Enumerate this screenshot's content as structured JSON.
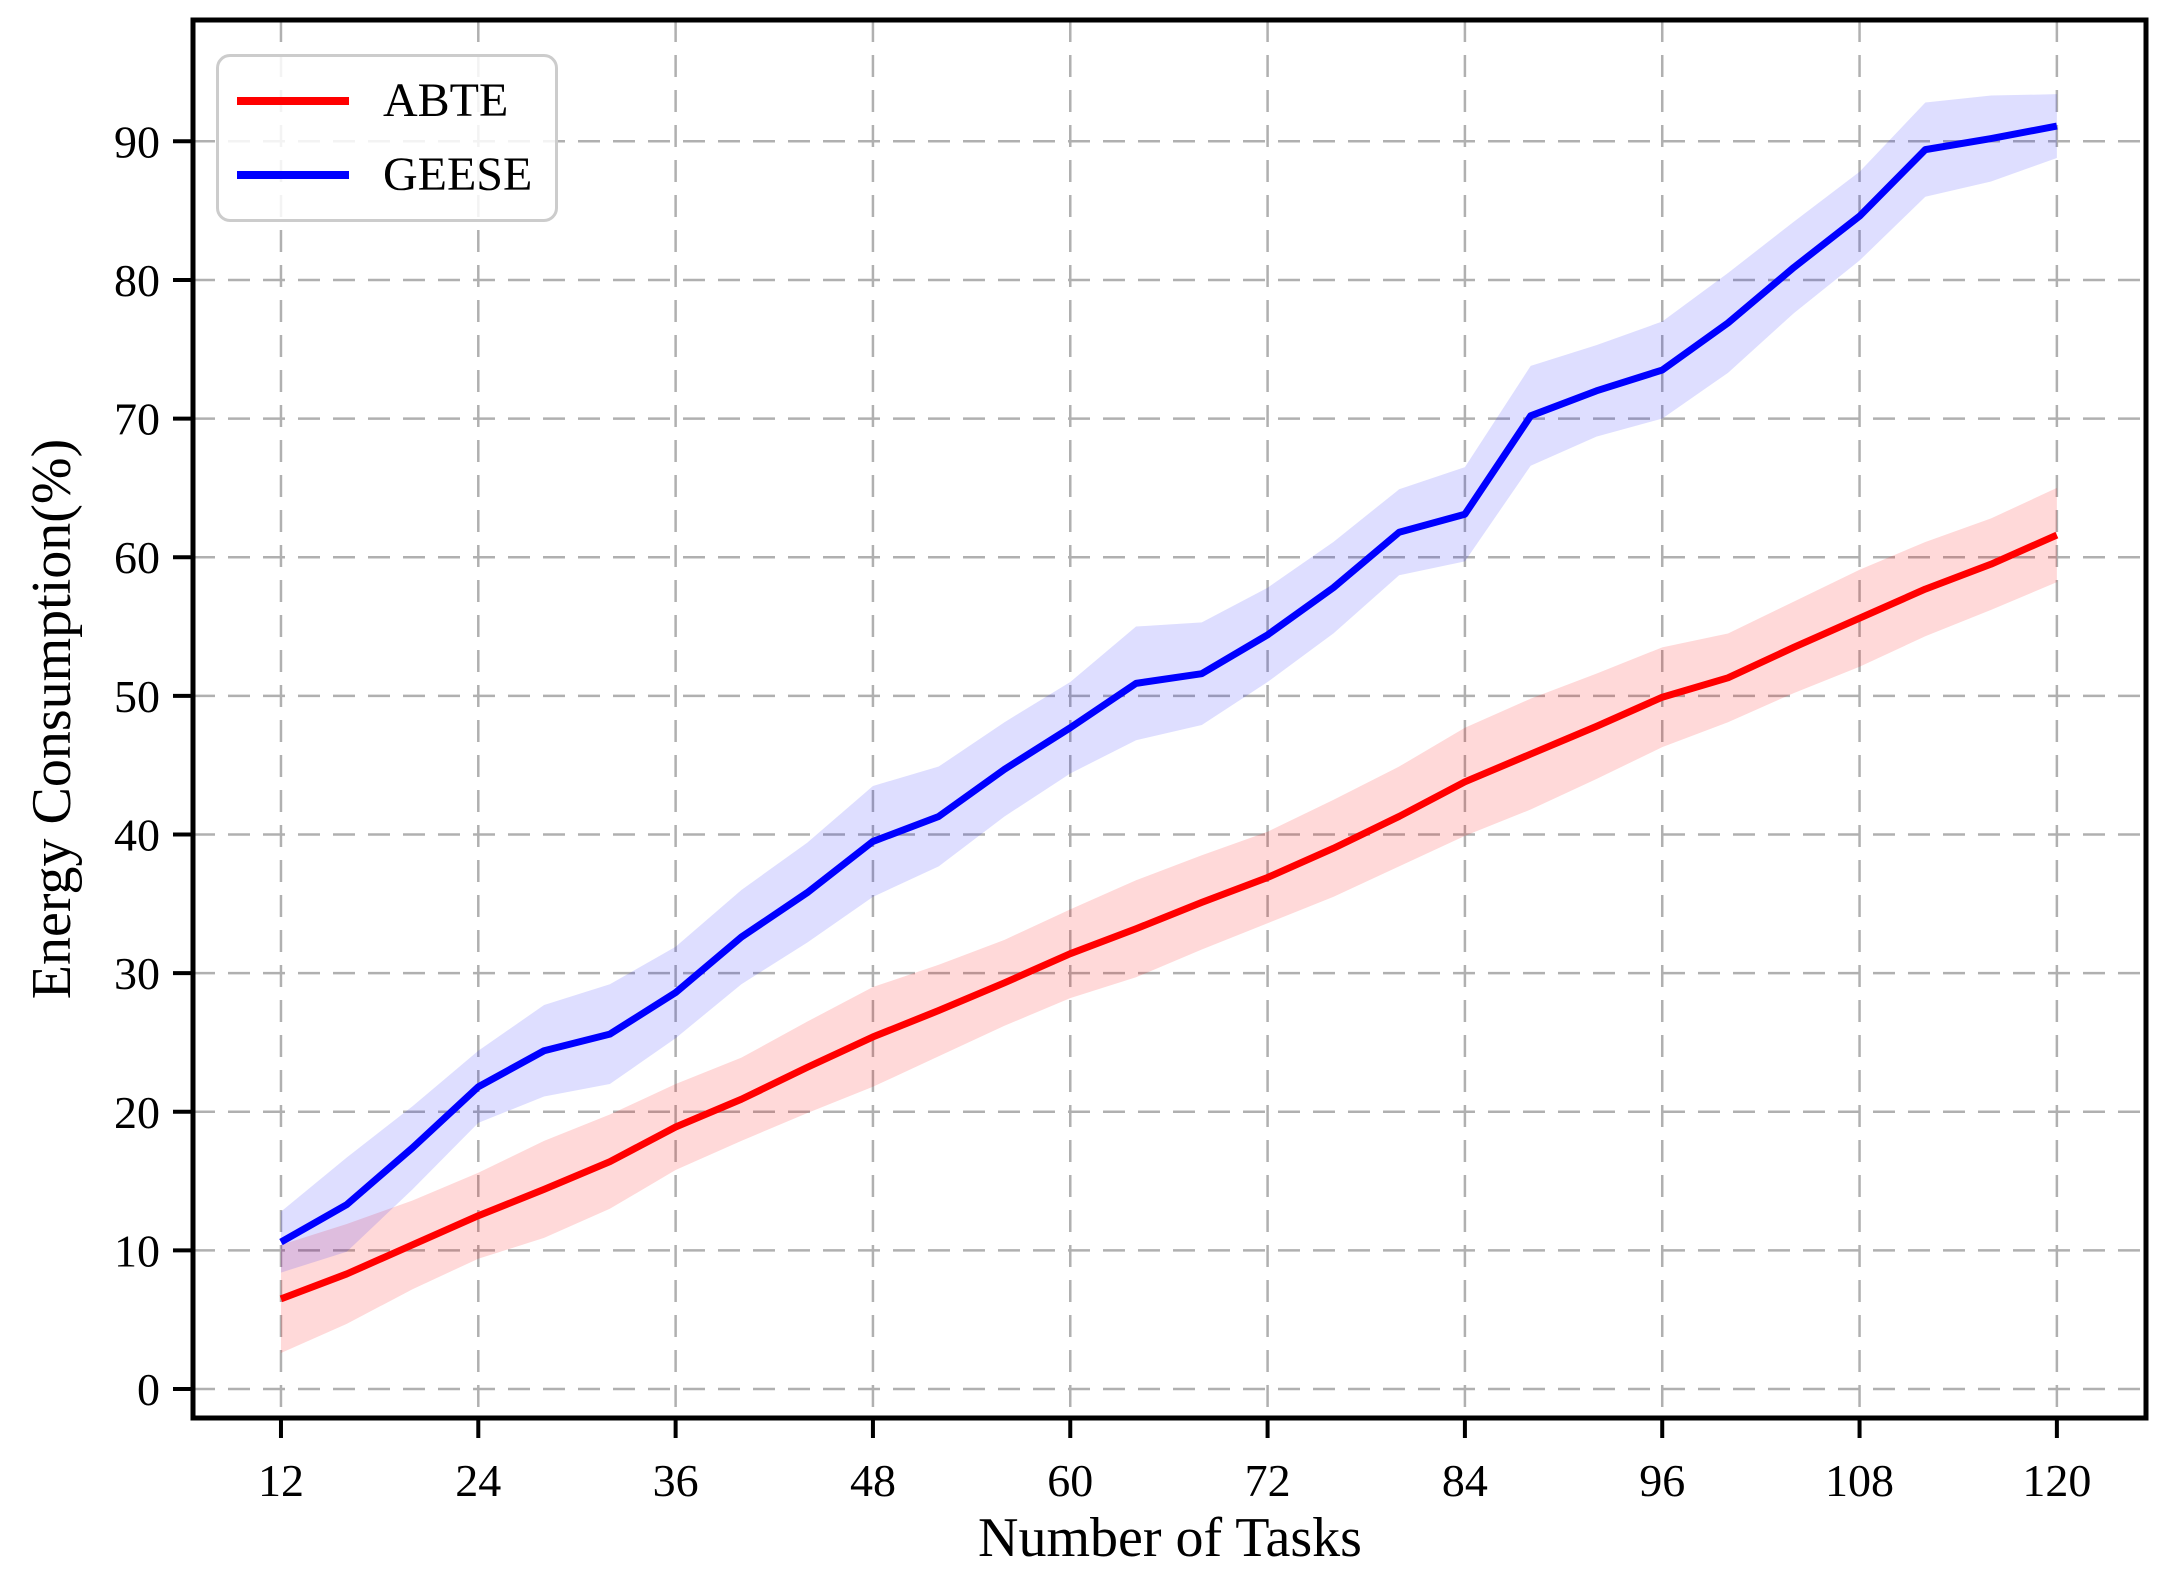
{
  "chart_data": {
    "type": "line",
    "title": "",
    "xlabel": "Number of Tasks",
    "ylabel": "Energy Consumption(%)",
    "xlim": [
      6.65,
      125.42
    ],
    "ylim": [
      -2.09,
      98.75
    ],
    "xticks": [
      12,
      24,
      36,
      48,
      60,
      72,
      84,
      96,
      108,
      120
    ],
    "yticks": [
      0,
      10,
      20,
      30,
      40,
      50,
      60,
      70,
      80,
      90
    ],
    "grid": {
      "visible": true,
      "style": "dashed",
      "color": "#b0b0b0"
    },
    "legend": {
      "position": "upper-left",
      "entries": [
        "ABTE",
        "GEESE"
      ]
    },
    "x": [
      12,
      16,
      20,
      24,
      28,
      32,
      36,
      40,
      44,
      48,
      52,
      56,
      60,
      64,
      68,
      72,
      76,
      80,
      84,
      88,
      92,
      96,
      100,
      104,
      108,
      112,
      116,
      120
    ],
    "series": [
      {
        "name": "ABTE",
        "color": "#ff0000",
        "band_color": "rgba(255,0,0,0.15)",
        "values": [
          6.5,
          8.3,
          10.4,
          12.5,
          14.4,
          16.4,
          18.9,
          20.9,
          23.2,
          25.4,
          27.3,
          29.3,
          31.4,
          33.2,
          35.1,
          36.9,
          39.0,
          41.3,
          43.8,
          45.8,
          47.8,
          49.9,
          51.3,
          53.5,
          55.6,
          57.7,
          59.5,
          61.6
        ],
        "band_halfwidth": [
          3.9,
          3.6,
          3.2,
          3.1,
          3.5,
          3.4,
          3.1,
          3.0,
          3.3,
          3.6,
          3.3,
          3.1,
          3.2,
          3.5,
          3.4,
          3.3,
          3.5,
          3.6,
          3.9,
          4.0,
          3.8,
          3.6,
          3.2,
          3.3,
          3.5,
          3.4,
          3.3,
          3.4
        ]
      },
      {
        "name": "GEESE",
        "color": "#0000ff",
        "band_color": "rgba(0,0,255,0.13)",
        "values": [
          10.6,
          13.3,
          17.4,
          21.8,
          24.4,
          25.6,
          28.6,
          32.6,
          35.8,
          39.5,
          41.3,
          44.7,
          47.7,
          50.9,
          51.6,
          54.4,
          57.8,
          61.8,
          63.1,
          70.2,
          72.0,
          73.5,
          76.9,
          80.9,
          84.6,
          89.4,
          90.2,
          91.1
        ],
        "band_halfwidth": [
          2.2,
          3.4,
          3.0,
          2.6,
          3.3,
          3.6,
          3.3,
          3.4,
          3.6,
          4.0,
          3.6,
          3.4,
          3.3,
          4.1,
          3.7,
          3.4,
          3.3,
          3.1,
          3.4,
          3.6,
          3.3,
          3.5,
          3.6,
          3.3,
          3.2,
          3.4,
          3.1,
          2.3
        ]
      }
    ],
    "axis": {
      "spine_color": "#000000",
      "tick_color": "#000000"
    }
  }
}
